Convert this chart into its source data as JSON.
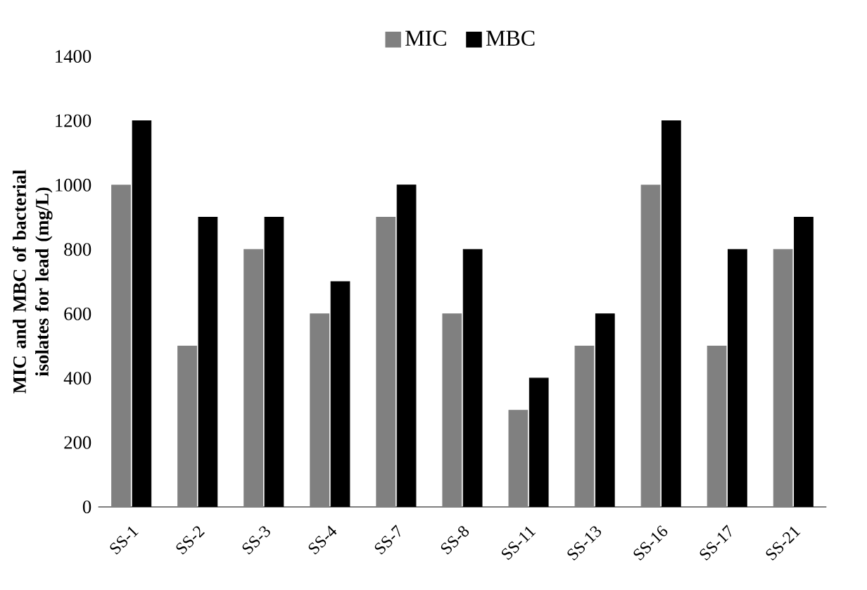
{
  "chart_data": {
    "type": "bar",
    "ylabel": "MIC and MBC of bacterial isolates for lead (mg/L)",
    "categories": [
      "SS-1",
      "SS-2",
      "SS-3",
      "SS-4",
      "SS-7",
      "SS-8",
      "SS-11",
      "SS-13",
      "SS-16",
      "SS-17",
      "SS-21"
    ],
    "series": [
      {
        "name": "MIC",
        "color": "#808080",
        "values": [
          1000,
          500,
          800,
          600,
          900,
          600,
          300,
          500,
          1000,
          500,
          800
        ]
      },
      {
        "name": "MBC",
        "color": "#000000",
        "values": [
          1200,
          900,
          900,
          700,
          1000,
          800,
          400,
          600,
          1200,
          800,
          900
        ]
      }
    ],
    "ylim": [
      0,
      1400
    ],
    "yticks": [
      0,
      200,
      400,
      600,
      800,
      1000,
      1200,
      1400
    ],
    "legend": "top"
  }
}
